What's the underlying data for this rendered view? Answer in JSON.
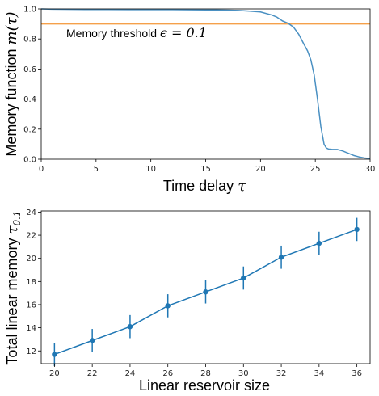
{
  "chart_data": [
    {
      "type": "line",
      "xlabel": "Time delay",
      "xlabel_symbol": "τ",
      "ylabel": "Memory function",
      "ylabel_symbol": "m(τ)",
      "xlim": [
        0,
        30
      ],
      "ylim": [
        0,
        1.0
      ],
      "xticks": [
        0,
        5,
        10,
        15,
        20,
        25,
        30
      ],
      "xtick_labels": [
        "0",
        "5",
        "10",
        "15",
        "20",
        "25",
        "30"
      ],
      "yticks": [
        0.0,
        0.2,
        0.4,
        0.6,
        0.8,
        1.0
      ],
      "ytick_labels": [
        "0.0",
        "0.2",
        "0.4",
        "0.6",
        "0.8",
        "1.0"
      ],
      "grid": false,
      "annotation": "Memory threshold",
      "annotation_math": "ϵ = 0.1",
      "series": [
        {
          "color": "#4a90c2",
          "x": [
            0,
            1,
            2,
            4,
            6,
            8,
            10,
            12,
            14,
            16,
            17,
            18,
            19,
            20,
            21,
            21.5,
            22,
            22.5,
            23,
            23.5,
            24,
            24.3,
            24.6,
            24.9,
            25.2,
            25.5,
            25.8,
            26.0,
            26.2,
            26.5,
            27.0,
            27.5,
            28.0,
            28.5,
            29.0,
            29.5,
            30.0
          ],
          "y": [
            1.0,
            0.998,
            0.997,
            0.996,
            0.996,
            0.995,
            0.995,
            0.995,
            0.994,
            0.993,
            0.992,
            0.99,
            0.985,
            0.98,
            0.96,
            0.945,
            0.92,
            0.905,
            0.88,
            0.83,
            0.76,
            0.72,
            0.66,
            0.56,
            0.4,
            0.22,
            0.1,
            0.075,
            0.068,
            0.066,
            0.065,
            0.055,
            0.04,
            0.025,
            0.015,
            0.008,
            0.005
          ]
        }
      ],
      "threshold": {
        "y": 0.9,
        "color": "#f5a04a"
      }
    },
    {
      "type": "line",
      "xlabel": "Linear reservoir size",
      "ylabel": "Total linear memory",
      "ylabel_symbol": "τ",
      "ylabel_subscript": "0.1",
      "xlim": [
        19.3,
        36.7
      ],
      "ylim": [
        10.9,
        24.1
      ],
      "xticks": [
        20,
        22,
        24,
        26,
        28,
        30,
        32,
        34,
        36
      ],
      "xtick_labels": [
        "20",
        "22",
        "24",
        "26",
        "28",
        "30",
        "32",
        "34",
        "36"
      ],
      "yticks": [
        12,
        14,
        16,
        18,
        20,
        22,
        24
      ],
      "ytick_labels": [
        "12",
        "14",
        "16",
        "18",
        "20",
        "22",
        "24"
      ],
      "grid": false,
      "series": [
        {
          "color": "#1f77b4",
          "x": [
            20,
            22,
            24,
            26,
            28,
            30,
            32,
            34,
            36
          ],
          "y": [
            11.7,
            12.9,
            14.1,
            15.9,
            17.1,
            18.3,
            20.1,
            21.3,
            22.5
          ],
          "err": [
            1.0,
            1.0,
            1.0,
            1.0,
            1.0,
            1.0,
            1.0,
            1.0,
            1.0
          ]
        }
      ]
    }
  ]
}
